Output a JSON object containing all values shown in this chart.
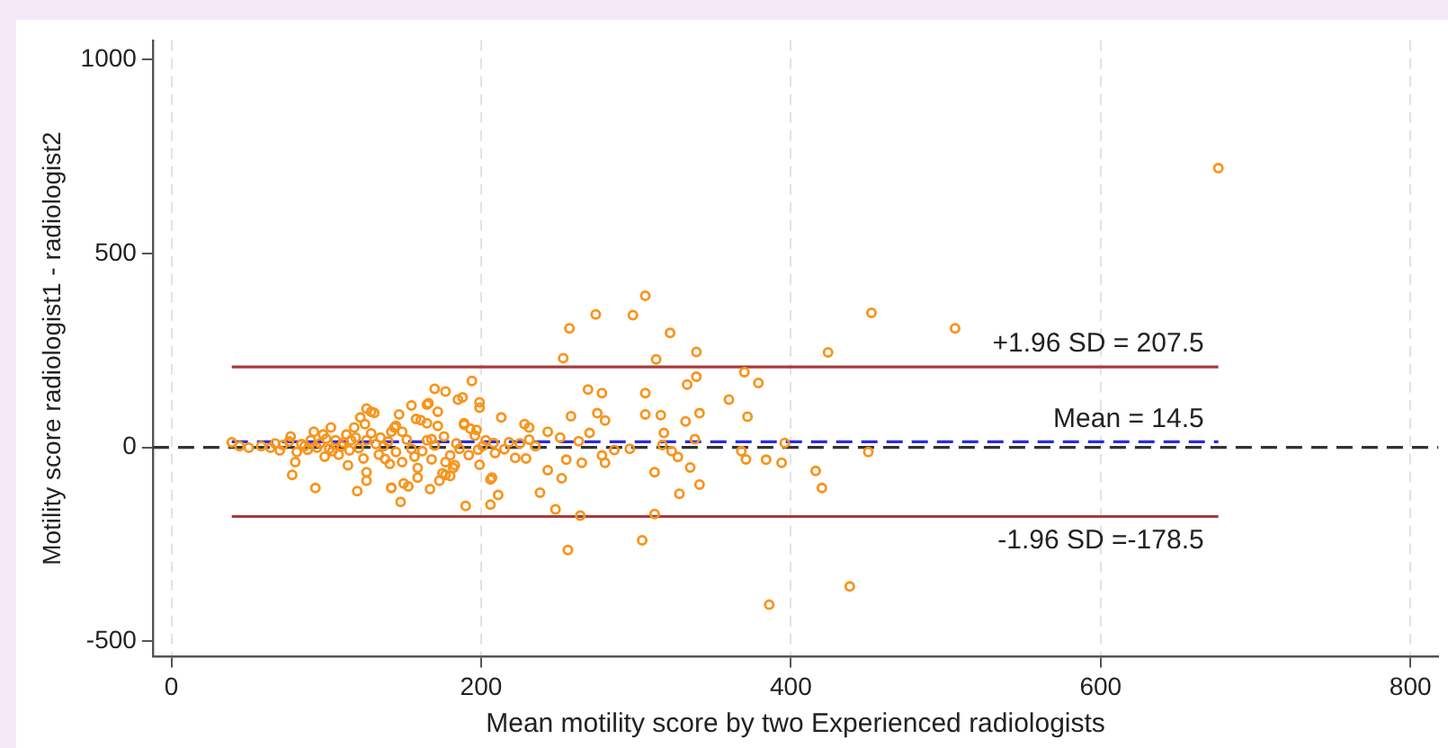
{
  "chart_data": {
    "type": "scatter",
    "xlabel": "Mean motility score by two Experienced radiologists",
    "ylabel": "Motility score radiologist1 - radiologist2",
    "x": [
      306,
      274,
      298,
      257,
      322,
      339,
      253,
      313,
      370,
      379,
      339,
      333,
      269,
      278,
      306,
      360,
      275,
      258,
      306,
      316,
      341,
      280,
      372,
      332,
      318,
      270,
      243,
      251,
      263,
      338,
      296,
      317,
      323,
      327,
      278,
      286,
      255,
      265,
      280,
      368,
      371,
      384,
      394,
      312,
      335,
      243,
      252,
      341,
      328,
      238,
      248,
      264,
      312,
      304,
      256,
      386,
      194,
      170,
      177,
      185,
      188,
      199,
      199,
      155,
      166,
      172,
      213,
      147,
      158,
      172,
      189,
      197,
      228,
      231,
      144,
      149,
      165,
      168,
      203,
      218,
      231,
      235,
      209,
      198,
      186,
      180,
      222,
      229,
      141,
      157,
      199,
      177,
      182,
      175,
      180,
      159,
      167,
      150,
      153,
      142,
      206,
      211,
      206,
      190,
      148,
      452,
      506,
      424,
      396,
      450,
      416,
      420,
      438,
      676,
      39,
      44,
      50,
      58,
      64,
      72,
      77,
      76,
      81,
      80,
      78,
      86,
      90,
      94,
      93,
      98,
      103,
      102,
      106,
      108,
      113,
      110,
      114,
      118,
      120,
      122,
      126,
      129,
      131,
      125,
      126,
      124,
      126,
      126,
      129,
      135,
      134,
      137,
      142,
      142,
      145,
      149,
      145,
      155,
      159,
      161,
      165,
      165,
      168,
      173,
      177,
      189,
      193,
      201,
      208,
      207,
      183,
      92,
      116,
      99,
      67,
      70,
      84,
      88,
      96,
      100,
      104,
      111,
      115,
      119,
      121,
      132,
      138,
      140,
      152,
      162,
      170,
      176,
      184,
      192,
      196,
      215,
      225
    ],
    "values": [
      391,
      343,
      341,
      307,
      295,
      246,
      230,
      227,
      194,
      166,
      182,
      162,
      149,
      140,
      140,
      123,
      88,
      80,
      85,
      83,
      88,
      69,
      79,
      67,
      37,
      37,
      40,
      25,
      16,
      21,
      -4,
      6,
      -10,
      -25,
      -21,
      -7,
      -32,
      -40,
      -40,
      -10,
      -31,
      -32,
      -40,
      -64,
      -52,
      -59,
      -80,
      -96,
      -120,
      -117,
      -160,
      -176,
      -172,
      -240,
      -265,
      -406,
      171,
      151,
      144,
      123,
      129,
      116,
      102,
      108,
      114,
      92,
      77,
      85,
      73,
      55,
      58,
      45,
      60,
      51,
      51,
      40,
      62,
      21,
      18,
      13,
      20,
      3,
      -15,
      -6,
      -4,
      -21,
      -27,
      -29,
      -43,
      -24,
      -45,
      -38,
      -53,
      -67,
      -74,
      -78,
      -108,
      -93,
      -101,
      -105,
      -83,
      -123,
      -148,
      -151,
      -141,
      347,
      307,
      245,
      11,
      -12,
      -61,
      -105,
      -359,
      720,
      13,
      3,
      -1,
      3,
      -1,
      6,
      28,
      15,
      -12,
      -38,
      -71,
      3,
      18,
      -1,
      -105,
      33,
      51,
      -4,
      18,
      -19,
      33,
      3,
      -46,
      51,
      -113,
      77,
      100,
      92,
      89,
      60,
      18,
      -29,
      -64,
      -86,
      36,
      25,
      -19,
      3,
      40,
      -104,
      55,
      -38,
      -12,
      -4,
      -53,
      70,
      110,
      18,
      -31,
      -86,
      -71,
      62,
      48,
      3,
      11,
      -78,
      -46,
      40,
      18,
      -24,
      10,
      -8,
      8,
      -6,
      10,
      22,
      -10,
      12,
      -8,
      25,
      -2,
      8,
      -30,
      15,
      20,
      -10,
      5,
      28,
      10,
      -20,
      30,
      -5,
      10
    ],
    "color": "#f7941d",
    "marker": "circle",
    "xlim": [
      -12,
      818
    ],
    "ylim": [
      -540,
      1050
    ],
    "xticks": [
      0,
      200,
      400,
      600,
      800
    ],
    "yticks": [
      -500,
      0,
      500,
      1000
    ],
    "grid": "x",
    "ref_lines": [
      {
        "axis": "y",
        "value": 0,
        "color": "#333333",
        "line_style": "dashed"
      },
      {
        "axis": "y",
        "value": 207.5,
        "label": "+1.96 SD = 207.5",
        "color": "#a83c3c",
        "line_style": "solid"
      },
      {
        "axis": "y",
        "value": 14.5,
        "label": "Mean = 14.5",
        "color": "#2a2ae0",
        "line_style": "dashed"
      },
      {
        "axis": "y",
        "value": -178.5,
        "label": "-1.96 SD =-178.5",
        "color": "#a83c3c",
        "line_style": "solid"
      }
    ]
  }
}
